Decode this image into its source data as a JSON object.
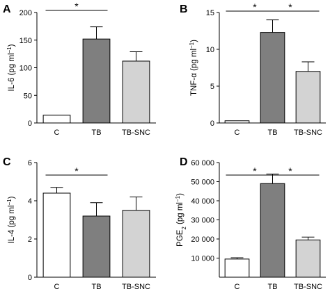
{
  "chart_data": [
    {
      "type": "bar",
      "panel": "A",
      "ylabel": "IL-6 (pg ml⁻¹)",
      "ylabel_parts": [
        "IL-6 (pg ml",
        "−1",
        ")"
      ],
      "ylim": [
        0,
        200
      ],
      "yticks": [
        0,
        50,
        100,
        150,
        200
      ],
      "ytick_labels": [
        "0",
        "50",
        "100",
        "150",
        "200"
      ],
      "categories": [
        "C",
        "TB",
        "TB-SNC"
      ],
      "values": [
        14,
        152,
        112
      ],
      "errors": [
        0,
        22,
        17
      ],
      "bar_colors": [
        "#ffffff",
        "#7f7f7f",
        "#d3d3d3"
      ],
      "significance": [
        {
          "from": 0,
          "to": 1,
          "label": "*"
        }
      ]
    },
    {
      "type": "bar",
      "panel": "B",
      "ylabel": "TNF-α (pg ml⁻¹)",
      "ylabel_parts": [
        "TNF-α (pg ml",
        "−1",
        ")"
      ],
      "ylim": [
        0,
        15
      ],
      "yticks": [
        0,
        5,
        10,
        15
      ],
      "ytick_labels": [
        "0",
        "5",
        "10",
        "15"
      ],
      "categories": [
        "C",
        "TB",
        "TB-SNC"
      ],
      "values": [
        0.3,
        12.3,
        7.0
      ],
      "errors": [
        0,
        1.7,
        1.3
      ],
      "bar_colors": [
        "#ffffff",
        "#7f7f7f",
        "#d3d3d3"
      ],
      "significance": [
        {
          "from": 0,
          "to": 1,
          "label": "*"
        },
        {
          "from": 1,
          "to": 2,
          "label": "*"
        }
      ]
    },
    {
      "type": "bar",
      "panel": "C",
      "ylabel": "IL-4 (pg ml⁻¹)",
      "ylabel_parts": [
        "IL-4 (pg ml",
        "−1",
        ")"
      ],
      "ylim": [
        0,
        6
      ],
      "yticks": [
        0,
        2,
        4,
        6
      ],
      "ytick_labels": [
        "0",
        "2",
        "4",
        "6"
      ],
      "categories": [
        "C",
        "TB",
        "TB-SNC"
      ],
      "values": [
        4.4,
        3.2,
        3.5
      ],
      "errors": [
        0.3,
        0.7,
        0.7
      ],
      "bar_colors": [
        "#ffffff",
        "#7f7f7f",
        "#d3d3d3"
      ],
      "significance": [
        {
          "from": 0,
          "to": 1,
          "label": "*"
        }
      ]
    },
    {
      "type": "bar",
      "panel": "D",
      "ylabel": "PGE₂ (pg ml⁻¹)",
      "ylabel_parts": [
        "PGE",
        "2",
        " (pg ml",
        "−1",
        ")"
      ],
      "ylim": [
        0,
        60000
      ],
      "yticks": [
        10000,
        20000,
        30000,
        40000,
        50000,
        60000
      ],
      "ytick_labels": [
        "10 000",
        "20 000",
        "30 000",
        "40 000",
        "50 000",
        "60 000"
      ],
      "categories": [
        "C",
        "TB",
        "TB-SNC"
      ],
      "values": [
        9500,
        49000,
        19500
      ],
      "errors": [
        700,
        5000,
        1500
      ],
      "bar_colors": [
        "#ffffff",
        "#7f7f7f",
        "#d3d3d3"
      ],
      "significance": [
        {
          "from": 0,
          "to": 1,
          "label": "*"
        },
        {
          "from": 1,
          "to": 2,
          "label": "*"
        }
      ]
    }
  ]
}
